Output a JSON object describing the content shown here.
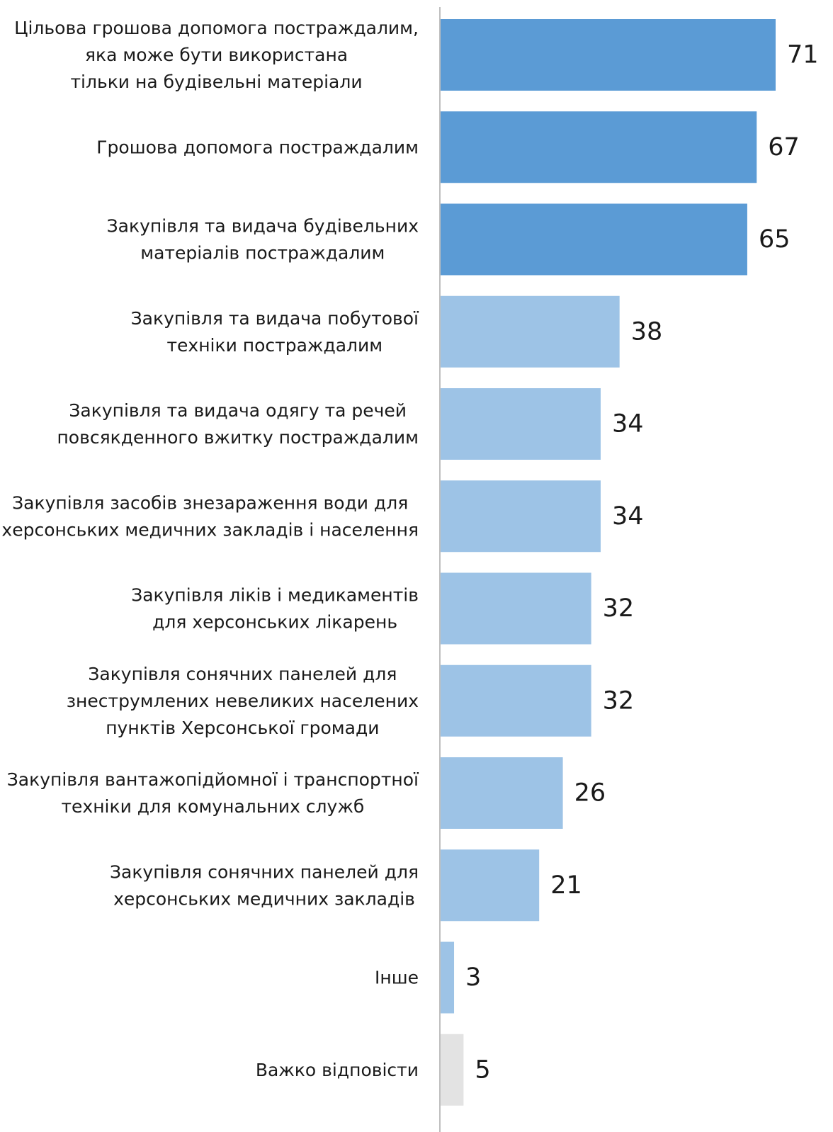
{
  "chart_data": {
    "type": "bar",
    "orientation": "horizontal",
    "title": "",
    "xlabel": "",
    "ylabel": "",
    "xlim": [
      0,
      71
    ],
    "grid": false,
    "legend": "none",
    "colors": {
      "highlight": "#5b9bd5",
      "regular": "#9dc3e6",
      "no_answer": "#e3e3e3",
      "axis": "#bfbfbf"
    },
    "categories": [
      [
        "Цільова грошова допомога постраждалим,",
        "яка може бути використана",
        "тільки на будівельні матеріали"
      ],
      [
        "Грошова допомога постраждалим"
      ],
      [
        "Закупівля та видача будівельних",
        "матеріалів постраждалим"
      ],
      [
        "Закупівля та видача побутової",
        "техніки постраждалим"
      ],
      [
        "Закупівля та видача одягу та речей",
        "повсякденного вжитку постраждалим"
      ],
      [
        "Закупівля засобів знезараження води для",
        "херсонських медичних закладів і населення"
      ],
      [
        "Закупівля ліків і медикаментів",
        "для херсонських лікарень"
      ],
      [
        "Закупівля сонячних панелей для",
        "знеструмлених невеликих населених",
        "пунктів Херсонської громади"
      ],
      [
        "Закупівля вантажопідйомної і транспортної",
        "техніки для комунальних служб"
      ],
      [
        "Закупівля сонячних панелей для",
        "херсонських медичних закладів"
      ],
      [
        "Інше"
      ],
      [
        "Важко відповісти"
      ]
    ],
    "values": [
      71,
      67,
      65,
      38,
      34,
      34,
      32,
      32,
      26,
      21,
      3,
      5
    ],
    "bar_color_keys": [
      "highlight",
      "highlight",
      "highlight",
      "regular",
      "regular",
      "regular",
      "regular",
      "regular",
      "regular",
      "regular",
      "regular",
      "no_answer"
    ]
  }
}
